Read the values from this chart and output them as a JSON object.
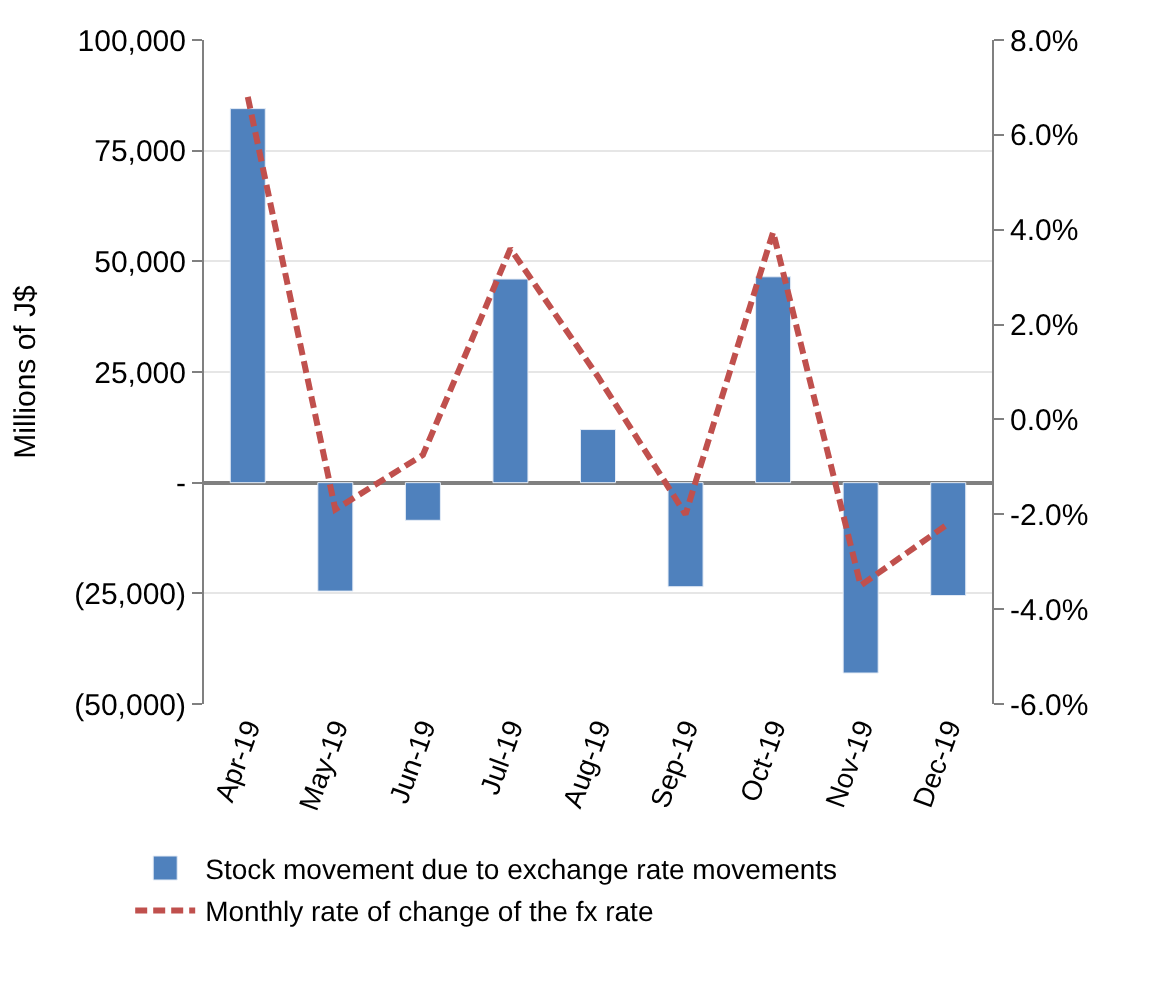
{
  "chart_data": {
    "type": "bar",
    "ylabel": "Millions of J$",
    "categories": [
      "Apr-19",
      "May-19",
      "Jun-19",
      "Jul-19",
      "Aug-19",
      "Sep-19",
      "Oct-19",
      "Nov-19",
      "Dec-19"
    ],
    "series": [
      {
        "name": "Stock movement due to exchange rate movements",
        "color": "#4f81bd",
        "values": [
          84500,
          -24500,
          -8500,
          46000,
          12000,
          -23500,
          46500,
          -43000,
          -25500
        ]
      },
      {
        "name": "Monthly rate of change of the fx rate",
        "color": "#c0504d",
        "type": "line",
        "axis": "y2",
        "line_style": "dashed",
        "values": [
          6.8,
          -1.9,
          -0.75,
          3.6,
          0.9,
          -2.0,
          3.95,
          -3.5,
          -2.2
        ]
      }
    ],
    "ylim": [
      -50000,
      100000
    ],
    "yticks": [
      {
        "value": -50000,
        "label": "(50,000)"
      },
      {
        "value": -25000,
        "label": "(25,000)"
      },
      {
        "value": 0,
        "label": "-"
      },
      {
        "value": 25000,
        "label": "25,000"
      },
      {
        "value": 50000,
        "label": "50,000"
      },
      {
        "value": 75000,
        "label": "75,000"
      },
      {
        "value": 100000,
        "label": "100,000"
      }
    ],
    "y2lim": [
      -6,
      8
    ],
    "y2ticks": [
      {
        "value": -6,
        "label": "-6.0%"
      },
      {
        "value": -4,
        "label": "-4.0%"
      },
      {
        "value": -2,
        "label": "-2.0%"
      },
      {
        "value": 0,
        "label": "0.0%"
      },
      {
        "value": 2,
        "label": "2.0%"
      },
      {
        "value": 4,
        "label": "4.0%"
      },
      {
        "value": 6,
        "label": "6.0%"
      },
      {
        "value": 8,
        "label": "8.0%"
      }
    ],
    "grid": "y",
    "legend": "bottom"
  }
}
